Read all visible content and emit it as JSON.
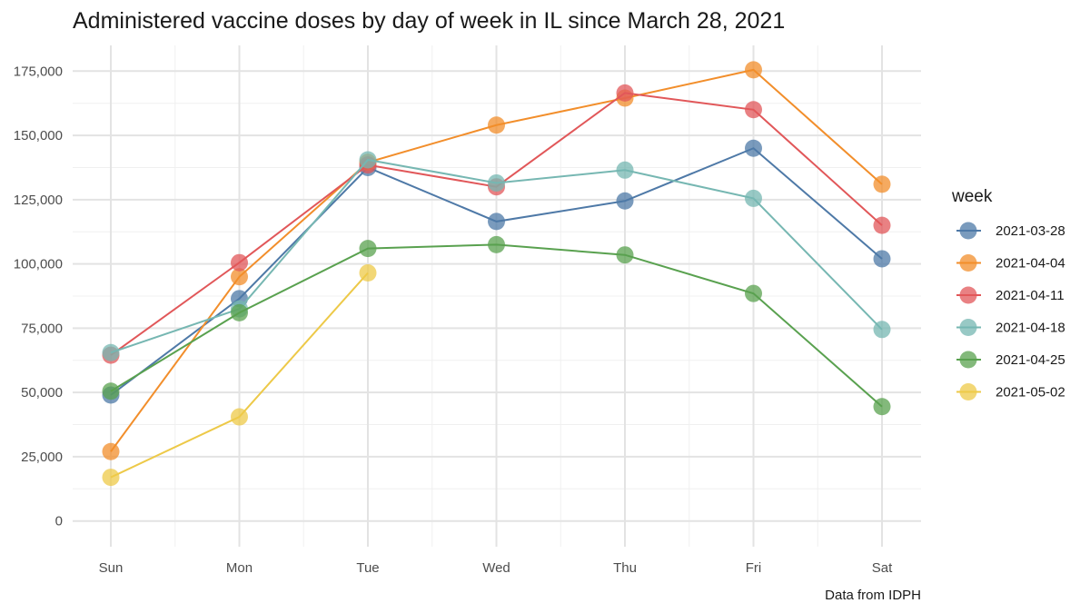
{
  "chart_data": {
    "type": "line",
    "title": "Administered vaccine doses by day of week in IL since March 28, 2021",
    "caption": "Data from IDPH",
    "xlabel": "",
    "ylabel": "",
    "categories": [
      "Sun",
      "Mon",
      "Tue",
      "Wed",
      "Thu",
      "Fri",
      "Sat"
    ],
    "ylim": [
      -10000,
      185000
    ],
    "yticks": [
      0,
      25000,
      50000,
      75000,
      100000,
      125000,
      150000,
      175000
    ],
    "ytick_labels": [
      "0",
      "25,000",
      "50,000",
      "75,000",
      "100,000",
      "125,000",
      "150,000",
      "175,000"
    ],
    "grid": true,
    "legend": {
      "title": "week",
      "position": "right"
    },
    "series": [
      {
        "name": "2021-03-28",
        "color": "#4e79a7",
        "values": [
          49000,
          86500,
          137500,
          116500,
          124500,
          145000,
          102000
        ]
      },
      {
        "name": "2021-04-04",
        "color": "#f28e2b",
        "values": [
          27000,
          95000,
          139500,
          154000,
          164500,
          175500,
          131000
        ]
      },
      {
        "name": "2021-04-11",
        "color": "#e15759",
        "values": [
          64500,
          100500,
          138500,
          130000,
          166500,
          160000,
          115000
        ]
      },
      {
        "name": "2021-04-18",
        "color": "#76b7b2",
        "values": [
          65500,
          82500,
          140500,
          131500,
          136500,
          125500,
          74500
        ]
      },
      {
        "name": "2021-04-25",
        "color": "#59a14f",
        "values": [
          50500,
          81000,
          106000,
          107500,
          103500,
          88500,
          44500
        ]
      },
      {
        "name": "2021-05-02",
        "color": "#edc948",
        "values": [
          17000,
          40500,
          96500,
          null,
          null,
          null,
          null
        ]
      }
    ]
  }
}
